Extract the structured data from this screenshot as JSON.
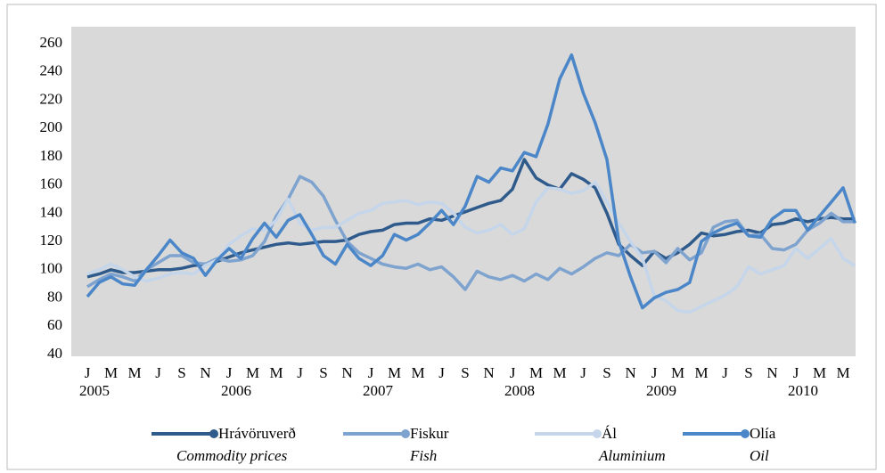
{
  "chart_data": {
    "type": "line",
    "categories": [
      "J",
      null,
      "M",
      null,
      "M",
      null,
      "J",
      null,
      "S",
      null,
      "N",
      null,
      "J",
      null,
      "M",
      null,
      "M",
      null,
      "J",
      null,
      "S",
      null,
      "N",
      null,
      "J",
      null,
      "M",
      null,
      "M",
      null,
      "J",
      null,
      "S",
      null,
      "N",
      null,
      "J",
      null,
      "M",
      null,
      "M",
      null,
      "J",
      null,
      "S",
      null,
      "N",
      null,
      "J",
      null,
      "M",
      null,
      "M",
      null,
      "J",
      null,
      "S",
      null,
      "N",
      null,
      "J",
      null,
      "M",
      null,
      "M",
      null
    ],
    "years": [
      "2005",
      "2006",
      "2007",
      "2008",
      "2009",
      "2010"
    ],
    "ylim": [
      40,
      260
    ],
    "yticks": [
      40,
      60,
      80,
      100,
      120,
      140,
      160,
      180,
      200,
      220,
      240,
      260
    ],
    "grid": false,
    "series": [
      {
        "name": "Hrávöruverð",
        "name_en": "Commodity prices",
        "color": "#2f5b8c",
        "values": [
          95,
          97,
          100,
          98,
          98,
          99,
          100,
          100,
          101,
          103,
          104,
          106,
          109,
          112,
          114,
          116,
          118,
          119,
          118,
          119,
          120,
          120,
          121,
          125,
          127,
          128,
          132,
          133,
          133,
          136,
          135,
          138,
          141,
          144,
          147,
          149,
          157,
          178,
          165,
          160,
          157,
          168,
          164,
          158,
          140,
          118,
          110,
          103,
          113,
          108,
          112,
          118,
          126,
          124,
          125,
          127,
          128,
          126,
          132,
          133,
          136,
          134,
          136,
          137,
          136,
          136
        ]
      },
      {
        "name": "Fiskur",
        "name_en": "Fish",
        "color": "#7ea3cf",
        "values": [
          88,
          93,
          97,
          95,
          92,
          100,
          105,
          110,
          110,
          105,
          104,
          108,
          106,
          107,
          110,
          120,
          138,
          150,
          166,
          162,
          152,
          135,
          120,
          112,
          108,
          104,
          102,
          101,
          104,
          100,
          102,
          95,
          86,
          99,
          95,
          93,
          96,
          92,
          97,
          93,
          101,
          97,
          102,
          108,
          112,
          110,
          118,
          112,
          113,
          105,
          115,
          107,
          112,
          130,
          134,
          135,
          124,
          125,
          115,
          114,
          118,
          128,
          133,
          140,
          134,
          134
        ]
      },
      {
        "name": "Ál",
        "name_en": "Aluminium",
        "color": "#c5d6ea",
        "values": [
          97,
          100,
          104,
          100,
          95,
          92,
          94,
          97,
          98,
          97,
          103,
          107,
          118,
          124,
          129,
          128,
          135,
          150,
          133,
          128,
          130,
          130,
          135,
          140,
          142,
          147,
          148,
          149,
          146,
          148,
          147,
          140,
          130,
          126,
          128,
          132,
          125,
          129,
          148,
          158,
          157,
          154,
          156,
          162,
          148,
          133,
          120,
          108,
          82,
          78,
          71,
          70,
          74,
          78,
          82,
          88,
          102,
          97,
          100,
          103,
          115,
          108,
          115,
          122,
          108,
          103
        ]
      },
      {
        "name": "Olía",
        "name_en": "Oil",
        "color": "#4a86c8",
        "values": [
          81,
          91,
          95,
          90,
          89,
          100,
          110,
          121,
          112,
          108,
          96,
          107,
          115,
          108,
          122,
          133,
          123,
          135,
          139,
          125,
          110,
          104,
          118,
          108,
          103,
          110,
          125,
          121,
          125,
          133,
          142,
          132,
          145,
          166,
          162,
          172,
          170,
          183,
          180,
          203,
          235,
          252,
          225,
          204,
          178,
          120,
          95,
          73,
          80,
          84,
          86,
          91,
          120,
          126,
          130,
          133,
          124,
          123,
          136,
          142,
          142,
          128,
          138,
          148,
          158,
          133
        ]
      }
    ]
  }
}
